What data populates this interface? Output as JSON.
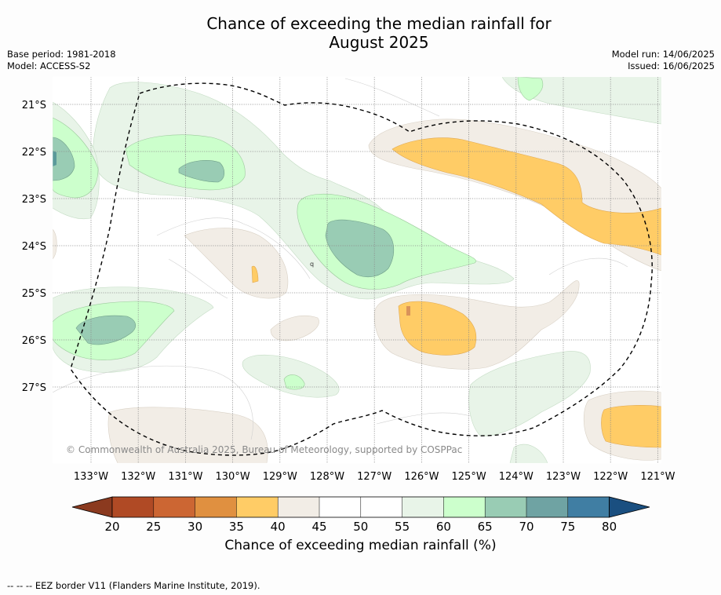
{
  "title": {
    "line1": "Chance of exceeding the median rainfall for",
    "line2": "August 2025"
  },
  "meta": {
    "base_period": "Base period: 1981-2018",
    "model": "Model: ACCESS-S2",
    "model_run": "Model run: 14/06/2025",
    "issued": "Issued: 16/06/2025"
  },
  "map": {
    "copyright": "© Commonwealth of Australia 2025, Bureau of Meteorology, supported by COSPPac",
    "lat_labels": [
      "21°S",
      "22°S",
      "23°S",
      "24°S",
      "25°S",
      "26°S",
      "27°S"
    ],
    "lon_labels": [
      "133°W",
      "132°W",
      "131°W",
      "130°W",
      "129°W",
      "128°W",
      "127°W",
      "126°W",
      "125°W",
      "124°W",
      "123°W",
      "122°W",
      "121°W"
    ],
    "stray_label": "q"
  },
  "colorbar": {
    "ticks": [
      "20",
      "25",
      "30",
      "35",
      "40",
      "45",
      "50",
      "55",
      "60",
      "65",
      "70",
      "75",
      "80"
    ],
    "colors": [
      "#8b3a1f",
      "#b04a25",
      "#cc6633",
      "#e09040",
      "#ffcc66",
      "#f2ede6",
      "#ffffff",
      "#ffffff",
      "#e8f4e8",
      "#ccffcc",
      "#99ccb4",
      "#6fa3a3",
      "#407ea3",
      "#1a4f80"
    ],
    "label": "Chance of exceeding median rainfall (%)"
  },
  "footer": "--  --  -- EEZ border V11 (Flanders Marine Institute, 2019)."
}
